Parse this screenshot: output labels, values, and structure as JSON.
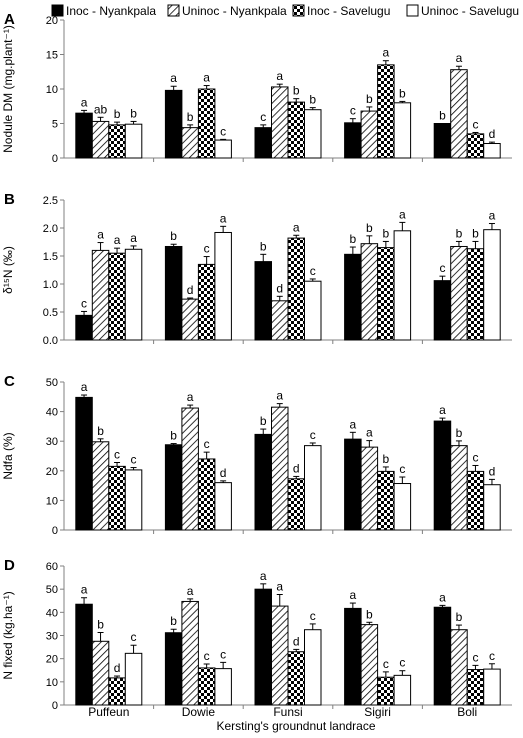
{
  "figure": {
    "xlabel": "Kersting's groundnut landrace",
    "legend": {
      "placement": "top",
      "entries": [
        {
          "label": "Inoc - Nyankpala",
          "pattern": "solid-black"
        },
        {
          "label": "Uninoc - Nyankpala",
          "pattern": "diagonal-hatch"
        },
        {
          "label": "Inoc - Savelugu",
          "pattern": "checkerboard"
        },
        {
          "label": "Uninoc - Savelugu",
          "pattern": "white"
        }
      ]
    },
    "colors": {
      "black": "#000000",
      "white": "#ffffff",
      "axis": "#808080"
    }
  },
  "chart_data": [
    {
      "panel_label": "A",
      "type": "bar",
      "ylabel": "Nodule DM (mg.plant⁻¹)",
      "ylim": [
        0,
        20
      ],
      "yticks": [
        0,
        5,
        10,
        15,
        20
      ],
      "grid": false,
      "categories": [
        "Puffeun",
        "Dowie",
        "Funsi",
        "Sigiri",
        "Boli"
      ],
      "series": [
        {
          "name": "Inoc - Nyankpala",
          "values": [
            6.5,
            9.8,
            4.4,
            5.1,
            5.0
          ],
          "errors": [
            0.4,
            0.6,
            0.4,
            0.6,
            0.0
          ],
          "letters": [
            "a",
            "a",
            "c",
            "c",
            "b"
          ]
        },
        {
          "name": "Uninoc - Nyankpala",
          "values": [
            5.3,
            4.4,
            10.3,
            6.8,
            12.8
          ],
          "errors": [
            0.6,
            0.4,
            0.4,
            0.6,
            0.5
          ],
          "letters": [
            "ab",
            "b",
            "a",
            "b",
            "a"
          ]
        },
        {
          "name": "Inoc - Savelugu",
          "values": [
            4.8,
            10.0,
            8.1,
            13.5,
            3.5
          ],
          "errors": [
            0.4,
            0.5,
            0.5,
            0.6,
            0.2
          ],
          "letters": [
            "b",
            "a",
            "b",
            "a",
            "c"
          ]
        },
        {
          "name": "Uninoc - Savelugu",
          "values": [
            4.9,
            2.6,
            7.0,
            8.0,
            2.1
          ],
          "errors": [
            0.4,
            0.1,
            0.3,
            0.2,
            0.2
          ],
          "letters": [
            "b",
            "c",
            "b",
            "b",
            "d"
          ]
        }
      ]
    },
    {
      "panel_label": "B",
      "type": "bar",
      "ylabel": "δ¹⁵N (‰)",
      "ylim": [
        0,
        2.5
      ],
      "yticks": [
        0,
        0.5,
        1.0,
        1.5,
        2.0,
        2.5
      ],
      "ytick_labels": [
        "0.0",
        "0.5",
        "1.0",
        "1.5",
        "2.0",
        "2.5"
      ],
      "grid": false,
      "categories": [
        "Puffeun",
        "Dowie",
        "Funsi",
        "Sigiri",
        "Boli"
      ],
      "series": [
        {
          "name": "Inoc - Nyankpala",
          "values": [
            0.44,
            1.67,
            1.4,
            1.53,
            1.06
          ],
          "errors": [
            0.07,
            0.04,
            0.13,
            0.13,
            0.08
          ],
          "letters": [
            "c",
            "b",
            "b",
            "b",
            "c"
          ]
        },
        {
          "name": "Uninoc - Nyankpala",
          "values": [
            1.6,
            0.73,
            0.7,
            1.72,
            1.67
          ],
          "errors": [
            0.14,
            0.02,
            0.08,
            0.14,
            0.09
          ],
          "letters": [
            "a",
            "d",
            "d",
            "b",
            "b"
          ]
        },
        {
          "name": "Inoc - Savelugu",
          "values": [
            1.55,
            1.35,
            1.82,
            1.65,
            1.63
          ],
          "errors": [
            0.09,
            0.14,
            0.05,
            0.11,
            0.13
          ],
          "letters": [
            "a",
            "c",
            "a",
            "b",
            "b"
          ]
        },
        {
          "name": "Uninoc - Savelugu",
          "values": [
            1.62,
            1.92,
            1.05,
            1.95,
            1.97
          ],
          "errors": [
            0.06,
            0.11,
            0.04,
            0.15,
            0.11
          ],
          "letters": [
            "a",
            "a",
            "c",
            "a",
            "a"
          ]
        }
      ]
    },
    {
      "panel_label": "C",
      "type": "bar",
      "ylabel": "Ndfa (%)",
      "ylim": [
        0,
        50
      ],
      "yticks": [
        0,
        10,
        20,
        30,
        40,
        50
      ],
      "grid": false,
      "categories": [
        "Puffeun",
        "Dowie",
        "Funsi",
        "Sigiri",
        "Boli"
      ],
      "series": [
        {
          "name": "Inoc - Nyankpala",
          "values": [
            44.8,
            28.8,
            32.3,
            30.7,
            36.8
          ],
          "errors": [
            0.8,
            0.4,
            1.8,
            2.3,
            1.0
          ],
          "letters": [
            "a",
            "b",
            "b",
            "a",
            "a"
          ]
        },
        {
          "name": "Uninoc - Nyankpala",
          "values": [
            29.8,
            41.2,
            41.5,
            28.0,
            28.5
          ],
          "errors": [
            1.0,
            1.0,
            1.2,
            2.2,
            1.6
          ],
          "letters": [
            "b",
            "a",
            "a",
            "a",
            "b"
          ]
        },
        {
          "name": "Inoc - Savelugu",
          "values": [
            21.5,
            24.0,
            17.3,
            19.8,
            19.8
          ],
          "errors": [
            1.3,
            2.3,
            0.8,
            1.5,
            2.0
          ],
          "letters": [
            "c",
            "c",
            "d",
            "b",
            "c"
          ]
        },
        {
          "name": "Uninoc - Savelugu",
          "values": [
            20.3,
            16.0,
            28.5,
            15.7,
            15.3
          ],
          "errors": [
            0.8,
            0.6,
            0.9,
            2.2,
            1.8
          ],
          "letters": [
            "c",
            "d",
            "c",
            "c",
            "d"
          ]
        }
      ]
    },
    {
      "panel_label": "D",
      "type": "bar",
      "ylabel": "N fixed (kg.ha⁻¹)",
      "ylim": [
        0,
        60
      ],
      "yticks": [
        0,
        10,
        20,
        30,
        40,
        50,
        60
      ],
      "grid": false,
      "categories": [
        "Puffeun",
        "Dowie",
        "Funsi",
        "Sigiri",
        "Boli"
      ],
      "series": [
        {
          "name": "Inoc - Nyankpala",
          "values": [
            43.5,
            31.2,
            50.0,
            41.7,
            42.2
          ],
          "errors": [
            2.8,
            1.5,
            2.3,
            2.3,
            0.8
          ],
          "letters": [
            "a",
            "b",
            "a",
            "a",
            "a"
          ]
        },
        {
          "name": "Uninoc - Nyankpala",
          "values": [
            27.5,
            44.7,
            42.7,
            34.7,
            32.5
          ],
          "errors": [
            3.8,
            1.1,
            5.0,
            1.0,
            2.0
          ],
          "letters": [
            "b",
            "a",
            "a",
            "b",
            "b"
          ]
        },
        {
          "name": "Inoc - Savelugu",
          "values": [
            11.7,
            16.0,
            23.0,
            12.0,
            15.3
          ],
          "errors": [
            0.8,
            1.7,
            1.0,
            2.3,
            1.8
          ],
          "letters": [
            "d",
            "c",
            "d",
            "c",
            "c"
          ]
        },
        {
          "name": "Uninoc - Savelugu",
          "values": [
            22.3,
            15.7,
            32.5,
            12.8,
            15.5
          ],
          "errors": [
            3.5,
            2.7,
            2.5,
            2.0,
            2.3
          ],
          "letters": [
            "c",
            "c",
            "c",
            "c",
            "c"
          ]
        }
      ]
    }
  ]
}
